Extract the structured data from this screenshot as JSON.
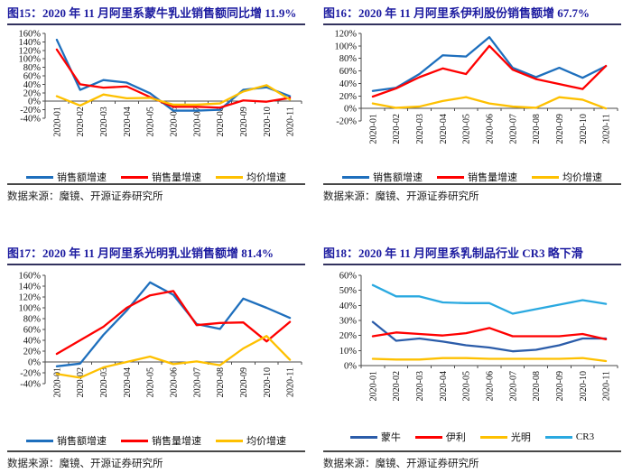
{
  "chart_data": [
    {
      "type": "line",
      "title": "图15：2020 年 11 月阿里系蒙牛乳业销售额同比增 11.9%",
      "categories": [
        "2020-01",
        "2020-02",
        "2020-03",
        "2020-04",
        "2020-05",
        "2020-06",
        "2020-07",
        "2020-08",
        "2020-09",
        "2020-10",
        "2020-11"
      ],
      "ylim": [
        -40,
        160
      ],
      "ystep": 20,
      "legend_position": "bottom",
      "series": [
        {
          "name": "销售额增速",
          "color": "#1e6fbd",
          "values": [
            145,
            27,
            50,
            44,
            19,
            -22,
            -22,
            -20,
            27,
            33,
            11.9
          ]
        },
        {
          "name": "销售量增速",
          "color": "#fe0000",
          "values": [
            122,
            40,
            32,
            35,
            10,
            -13,
            -13,
            -15,
            2,
            -1,
            8
          ]
        },
        {
          "name": "均价增速",
          "color": "#fec000",
          "values": [
            12,
            -10,
            16,
            7,
            8,
            -8,
            -8,
            -5,
            23,
            38,
            4
          ]
        }
      ],
      "source": "数据来源：魔镜、开源证券研究所"
    },
    {
      "type": "line",
      "title": "图16：2020 年 11 月阿里系伊利股份销售额增 67.7%",
      "categories": [
        "2020-01",
        "2020-02",
        "2020-03",
        "2020-04",
        "2020-05",
        "2020-06",
        "2020-07",
        "2020-08",
        "2020-09",
        "2020-10",
        "2020-11"
      ],
      "ylim": [
        -20,
        120
      ],
      "ystep": 20,
      "legend_position": "bottom",
      "series": [
        {
          "name": "销售额增速",
          "color": "#1e6fbd",
          "values": [
            28,
            33,
            55,
            85,
            83,
            114,
            65,
            50,
            65,
            49,
            67.7
          ]
        },
        {
          "name": "销售量增速",
          "color": "#fe0000",
          "values": [
            19,
            32,
            50,
            64,
            55,
            100,
            62,
            47,
            39,
            31,
            68
          ]
        },
        {
          "name": "均价增速",
          "color": "#fec000",
          "values": [
            8,
            1,
            3,
            12,
            18,
            8,
            3,
            1,
            18,
            14,
            0
          ]
        }
      ],
      "source": "数据来源：魔镜、开源证券研究所"
    },
    {
      "type": "line",
      "title": "图17：2020 年 11 月阿里系光明乳业销售额增 81.4%",
      "categories": [
        "2020-01",
        "2020-02",
        "2020-03",
        "2020-04",
        "2020-05",
        "2020-06",
        "2020-07",
        "2020-08",
        "2020-09",
        "2020-10",
        "2020-11"
      ],
      "ylim": [
        -40,
        160
      ],
      "ystep": 20,
      "legend_position": "bottom",
      "series": [
        {
          "name": "销售额增速",
          "color": "#1e6fbd",
          "values": [
            -8,
            -3,
            50,
            95,
            147,
            124,
            70,
            61,
            117,
            100,
            81.4
          ]
        },
        {
          "name": "销售量增速",
          "color": "#fe0000",
          "values": [
            15,
            40,
            65,
            100,
            123,
            131,
            68,
            72,
            73,
            38,
            74
          ]
        },
        {
          "name": "均价增速",
          "color": "#fec000",
          "values": [
            -22,
            -29,
            -10,
            0,
            10,
            -4,
            1,
            -6,
            25,
            48,
            4
          ]
        }
      ],
      "source": "数据来源：魔镜、开源证券研究所"
    },
    {
      "type": "line",
      "title": "图18：2020 年 11 月阿里系乳制品行业 CR3 略下滑",
      "categories": [
        "2020-01",
        "2020-02",
        "2020-03",
        "2020-04",
        "2020-05",
        "2020-06",
        "2020-07",
        "2020-08",
        "2020-09",
        "2020-10",
        "2020-11"
      ],
      "ylim": [
        0,
        60
      ],
      "ystep": 10,
      "legend_position": "bottom",
      "series": [
        {
          "name": "蒙牛",
          "color": "#2b5ca9",
          "values": [
            29,
            16.5,
            18,
            16,
            13.5,
            12,
            9.5,
            10.5,
            13.5,
            18,
            18
          ]
        },
        {
          "name": "伊利",
          "color": "#fe0000",
          "values": [
            19.5,
            22,
            21,
            20,
            21.5,
            25,
            19.5,
            19.5,
            19.5,
            21,
            17.5
          ]
        },
        {
          "name": "光明",
          "color": "#fec000",
          "values": [
            4.5,
            4,
            4,
            5,
            5,
            4.5,
            4.5,
            4.5,
            4.5,
            5,
            3
          ]
        },
        {
          "name": "CR3",
          "color": "#2aa9e0",
          "values": [
            53.5,
            46,
            46,
            42,
            41.5,
            41.5,
            34.5,
            37.5,
            40.5,
            43.5,
            41
          ]
        }
      ],
      "source": "数据来源：魔镜、开源证券研究所"
    }
  ],
  "style": {
    "title_color": "#1c1ba0",
    "axis_color": "#4a4a4a",
    "label_color": "#111111"
  }
}
